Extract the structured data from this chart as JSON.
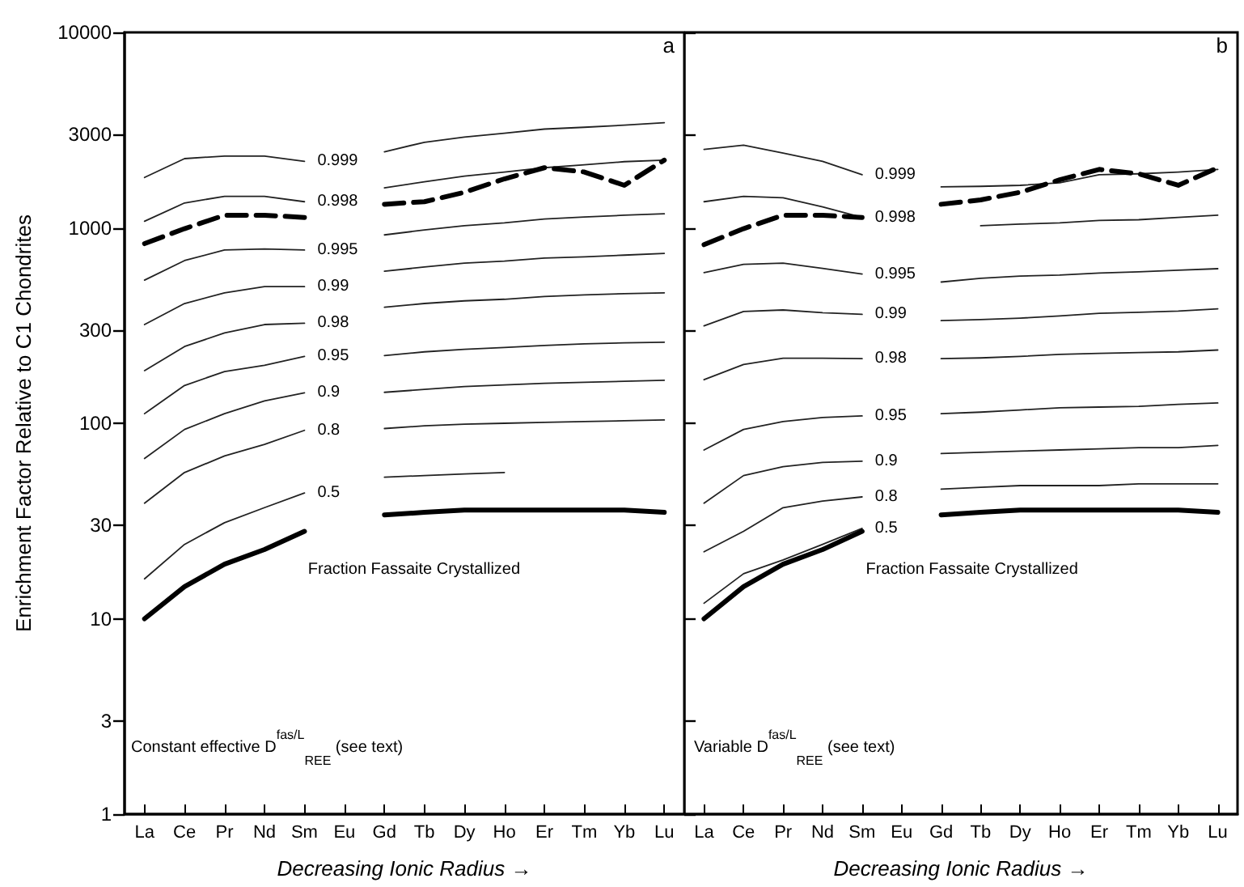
{
  "chart_data": [
    {
      "type": "line",
      "xlabel": "Decreasing Ionic Radius →",
      "ylabel": "Enrichment Factor Relative to C1 Chondrites",
      "log": "y",
      "ylim": [
        1,
        10000
      ],
      "yticks": [
        1,
        3,
        10,
        30,
        100,
        300,
        1000,
        3000,
        10000
      ],
      "grid": false,
      "legend": false,
      "marker": "none",
      "annotations": [
        "a",
        "Fraction Fassaite Crystallized",
        "Constant effective D$^{fas/L}$$_{REE}$ (see text)"
      ],
      "categories": [
        "La",
        "Ce",
        "Pr",
        "Nd",
        "Sm",
        "Eu",
        "Gd",
        "Tb",
        "Dy",
        "Ho",
        "Er",
        "Tm",
        "Yb",
        "Lu"
      ],
      "series": [
        {
          "name": "0.999",
          "color": "#222222",
          "values": [
            1810,
            2260,
            2330,
            2330,
            2190,
            null,
            2450,
            2740,
            2910,
            3050,
            3200,
            3270,
            3350,
            3450
          ]
        },
        {
          "name": "0.998",
          "color": "#222222",
          "values": [
            1080,
            1340,
            1450,
            1450,
            1360,
            null,
            1600,
            1720,
            1840,
            1930,
            2030,
            2100,
            2180,
            2220
          ]
        },
        {
          "color": "#000000",
          "line_style": "dashed",
          "values": [
            830,
            990,
            1160,
            1160,
            1130,
            null,
            1320,
            1360,
            1520,
            1780,
            2030,
            1930,
            1650,
            2220
          ]
        },
        {
          "name": "0.995",
          "color": "#222222",
          "values": [
            540,
            680,
            770,
            780,
            770,
            null,
            920,
            975,
            1025,
            1060,
            1110,
            1135,
            1160,
            1180
          ]
        },
        {
          "name": "0.99",
          "color": "#222222",
          "values": [
            320,
            410,
            465,
            500,
            500,
            null,
            600,
            630,
            660,
            675,
            700,
            710,
            725,
            740
          ]
        },
        {
          "name": "0.98",
          "color": "#222222",
          "values": [
            186,
            247,
            290,
            320,
            325,
            null,
            392,
            410,
            423,
            431,
            445,
            454,
            460,
            465
          ]
        },
        {
          "name": "0.95",
          "color": "#222222",
          "values": [
            112,
            156,
            184,
            198,
            220,
            null,
            222,
            232,
            239,
            244,
            250,
            255,
            258,
            260
          ]
        },
        {
          "name": "0.9",
          "color": "#222222",
          "values": [
            66,
            93,
            112,
            130,
            143,
            null,
            144,
            149,
            154,
            157,
            160,
            162,
            164,
            166
          ]
        },
        {
          "name": "0.8",
          "color": "#222222",
          "values": [
            39,
            56,
            68,
            78,
            92,
            null,
            94,
            97,
            99,
            100,
            101,
            102,
            103,
            104
          ]
        },
        {
          "name": "0.5",
          "color": "#222222",
          "values": [
            16,
            24,
            31,
            37,
            44,
            null,
            53,
            54,
            55,
            56,
            null,
            null,
            null,
            null
          ]
        },
        {
          "color": "#000000",
          "line_style": "solid",
          "values": [
            10,
            14.6,
            19,
            22.6,
            28,
            null,
            34,
            35,
            36,
            36,
            36,
            36,
            36,
            35
          ]
        }
      ]
    },
    {
      "type": "line",
      "xlabel": "Decreasing Ionic Radius →",
      "log": "y",
      "ylim": [
        1,
        10000
      ],
      "yticks": [
        1,
        3,
        10,
        30,
        100,
        300,
        1000,
        3000,
        10000
      ],
      "tick_labels": "x",
      "grid": false,
      "legend": false,
      "marker": "none",
      "annotations": [
        "b",
        "Fraction Fassaite Crystallized",
        "Variable D$^{fas/L}$$_{REE}$ (see text)"
      ],
      "categories": [
        "La",
        "Ce",
        "Pr",
        "Nd",
        "Sm",
        "Eu",
        "Gd",
        "Tb",
        "Dy",
        "Ho",
        "Er",
        "Tm",
        "Yb",
        "Lu"
      ],
      "series": [
        {
          "name": "0.999",
          "color": "#222222",
          "values": [
            2520,
            2650,
            2410,
            2190,
            1870,
            null,
            1620,
            1630,
            1650,
            1700,
            1870,
            1890,
            1930,
            1990
          ]
        },
        {
          "name": "0.998",
          "color": "#222222",
          "values": [
            1360,
            1450,
            1425,
            1280,
            1130,
            null,
            null,
            1025,
            1045,
            1060,
            1090,
            1100,
            1130,
            1160
          ]
        },
        {
          "color": "#000000",
          "line_style": "dashed",
          "values": [
            820,
            990,
            1160,
            1160,
            1130,
            null,
            1320,
            1390,
            1520,
            1760,
            1990,
            1890,
            1650,
            2030
          ]
        },
        {
          "name": "0.995",
          "color": "#222222",
          "values": [
            590,
            650,
            660,
            620,
            580,
            null,
            528,
            552,
            566,
            573,
            587,
            595,
            607,
            618
          ]
        },
        {
          "name": "0.99",
          "color": "#222222",
          "values": [
            315,
            373,
            380,
            368,
            361,
            null,
            335,
            339,
            345,
            354,
            365,
            370,
            375,
            385
          ]
        },
        {
          "name": "0.98",
          "color": "#222222",
          "values": [
            167,
            200,
            215,
            215,
            214,
            null,
            214,
            216,
            220,
            225,
            228,
            230,
            232,
            237
          ]
        },
        {
          "name": "0.95",
          "color": "#222222",
          "values": [
            73,
            93,
            102,
            107,
            109,
            null,
            112,
            114,
            117,
            120,
            121,
            122,
            125,
            127
          ]
        },
        {
          "name": "0.9",
          "color": "#222222",
          "values": [
            39,
            54,
            60,
            63,
            64,
            null,
            70,
            71,
            72,
            73,
            74,
            75,
            75,
            77
          ]
        },
        {
          "name": "0.8",
          "color": "#222222",
          "values": [
            22,
            28,
            37,
            40,
            42,
            null,
            46,
            47,
            48,
            48,
            48,
            49,
            49,
            49
          ]
        },
        {
          "name": "0.5",
          "color": "#222222",
          "values": [
            12,
            17,
            20,
            24,
            29,
            null,
            null,
            null,
            null,
            null,
            null,
            null,
            null,
            null
          ]
        },
        {
          "color": "#000000",
          "line_style": "solid",
          "values": [
            10,
            14.6,
            19,
            22.6,
            28,
            null,
            34,
            35,
            36,
            36,
            36,
            36,
            36,
            35
          ]
        }
      ]
    }
  ]
}
